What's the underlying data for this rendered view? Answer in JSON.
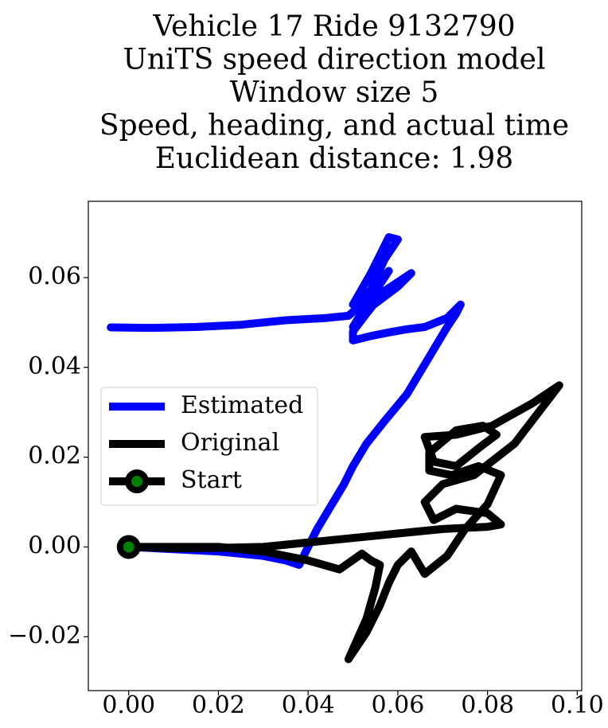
{
  "chart_data": {
    "type": "line",
    "title_lines": [
      "Vehicle 17 Ride 9132790",
      "UniTS speed direction model",
      "Window size 5",
      "Speed, heading, and actual time",
      "Euclidean distance: 1.98"
    ],
    "xlabel": "",
    "ylabel": "",
    "xlim": [
      -0.009,
      0.101
    ],
    "ylim": [
      -0.032,
      0.077
    ],
    "xticks": [
      0.0,
      0.02,
      0.04,
      0.06,
      0.08,
      0.1
    ],
    "xtick_labels": [
      "0.00",
      "0.02",
      "0.04",
      "0.06",
      "0.08",
      "0.10"
    ],
    "yticks": [
      -0.02,
      0.0,
      0.02,
      0.04,
      0.06
    ],
    "ytick_labels": [
      "−0.02",
      "0.00",
      "0.02",
      "0.04",
      "0.06"
    ],
    "grid": false,
    "legend_position": "center-left",
    "series": [
      {
        "name": "Estimated",
        "color": "#0000ff",
        "points": [
          [
            0.0,
            0.0
          ],
          [
            0.01,
            -0.0005
          ],
          [
            0.02,
            -0.001
          ],
          [
            0.03,
            -0.002
          ],
          [
            0.035,
            -0.003
          ],
          [
            0.038,
            -0.004
          ],
          [
            0.04,
            0.0
          ],
          [
            0.042,
            0.004
          ],
          [
            0.045,
            0.009
          ],
          [
            0.048,
            0.014
          ],
          [
            0.05,
            0.018
          ],
          [
            0.053,
            0.023
          ],
          [
            0.057,
            0.028
          ],
          [
            0.062,
            0.034
          ],
          [
            0.065,
            0.039
          ],
          [
            0.068,
            0.044
          ],
          [
            0.071,
            0.049
          ],
          [
            0.073,
            0.052
          ],
          [
            0.074,
            0.054
          ],
          [
            0.071,
            0.051
          ],
          [
            0.066,
            0.049
          ],
          [
            0.062,
            0.0485
          ],
          [
            0.058,
            0.0478
          ],
          [
            0.054,
            0.047
          ],
          [
            0.05,
            0.046
          ],
          [
            0.05,
            0.048
          ],
          [
            0.053,
            0.052
          ],
          [
            0.057,
            0.057
          ],
          [
            0.063,
            0.061
          ],
          [
            0.06,
            0.058
          ],
          [
            0.054,
            0.0535
          ],
          [
            0.05,
            0.049
          ],
          [
            0.053,
            0.054
          ],
          [
            0.058,
            0.0615
          ],
          [
            0.055,
            0.058
          ],
          [
            0.05,
            0.054
          ],
          [
            0.054,
            0.061
          ],
          [
            0.058,
            0.069
          ],
          [
            0.06,
            0.0685
          ],
          [
            0.057,
            0.064
          ],
          [
            0.053,
            0.055
          ],
          [
            0.049,
            0.0515
          ],
          [
            0.044,
            0.051
          ],
          [
            0.035,
            0.0505
          ],
          [
            0.025,
            0.0495
          ],
          [
            0.015,
            0.049
          ],
          [
            0.005,
            0.0488
          ],
          [
            -0.004,
            0.0489
          ]
        ]
      },
      {
        "name": "Original",
        "color": "#000000",
        "points": [
          [
            0.0,
            0.0
          ],
          [
            0.01,
            -0.0003
          ],
          [
            0.02,
            -0.0002
          ],
          [
            0.03,
            0.0
          ],
          [
            0.04,
            0.001
          ],
          [
            0.05,
            0.002
          ],
          [
            0.06,
            0.003
          ],
          [
            0.07,
            0.004
          ],
          [
            0.08,
            0.0045
          ],
          [
            0.083,
            0.005
          ],
          [
            0.08,
            0.0075
          ],
          [
            0.073,
            0.0085
          ],
          [
            0.068,
            0.006
          ],
          [
            0.066,
            0.01
          ],
          [
            0.07,
            0.014
          ],
          [
            0.077,
            0.016
          ],
          [
            0.086,
            0.023
          ],
          [
            0.096,
            0.036
          ],
          [
            0.09,
            0.032
          ],
          [
            0.081,
            0.027
          ],
          [
            0.073,
            0.025
          ],
          [
            0.066,
            0.0245
          ],
          [
            0.068,
            0.019
          ],
          [
            0.073,
            0.018
          ],
          [
            0.078,
            0.022
          ],
          [
            0.082,
            0.025
          ],
          [
            0.079,
            0.027
          ],
          [
            0.073,
            0.026
          ],
          [
            0.067,
            0.021
          ],
          [
            0.067,
            0.017
          ],
          [
            0.072,
            0.016
          ],
          [
            0.078,
            0.018
          ],
          [
            0.083,
            0.016
          ],
          [
            0.08,
            0.0095
          ],
          [
            0.075,
            0.004
          ],
          [
            0.071,
            -0.002
          ],
          [
            0.066,
            -0.006
          ],
          [
            0.063,
            -0.001
          ],
          [
            0.06,
            -0.004
          ],
          [
            0.058,
            -0.008
          ],
          [
            0.056,
            -0.013
          ],
          [
            0.053,
            -0.019
          ],
          [
            0.049,
            -0.025
          ],
          [
            0.053,
            -0.016
          ],
          [
            0.055,
            -0.009
          ],
          [
            0.056,
            -0.004
          ],
          [
            0.054,
            -0.003
          ],
          [
            0.052,
            -0.0015
          ],
          [
            0.047,
            -0.005
          ],
          [
            0.04,
            -0.003
          ],
          [
            0.03,
            -0.001
          ],
          [
            0.02,
            0.0
          ],
          [
            0.01,
            0.0
          ],
          [
            0.0,
            0.0
          ]
        ]
      }
    ],
    "start_marker": {
      "name": "Start",
      "x": 0.0,
      "y": 0.0,
      "edge_color": "#000000",
      "face_color": "#008000"
    }
  }
}
